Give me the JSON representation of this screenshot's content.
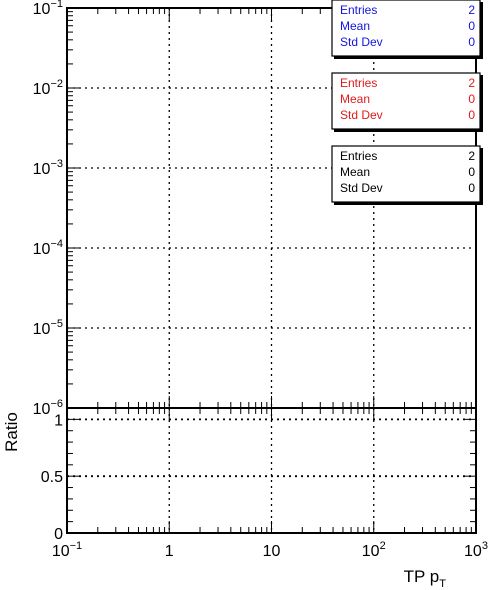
{
  "chart_data": [
    {
      "type": "line",
      "panel": "main",
      "x_scale": "log",
      "y_scale": "log",
      "xlim": [
        0.1,
        1000
      ],
      "ylim": [
        1e-06,
        0.1
      ],
      "grid": true,
      "y_ticks": [
        {
          "value": 0.1,
          "base": "10",
          "exp": "−1"
        },
        {
          "value": 0.01,
          "base": "10",
          "exp": "−2"
        },
        {
          "value": 0.001,
          "base": "10",
          "exp": "−3"
        },
        {
          "value": 0.0001,
          "base": "10",
          "exp": "−4"
        },
        {
          "value": 1e-05,
          "base": "10",
          "exp": "−5"
        },
        {
          "value": 1e-06,
          "base": "10",
          "exp": "−6"
        }
      ],
      "series": [],
      "stat_boxes": [
        {
          "color": "#1414dc",
          "rows": [
            {
              "label": "Entries",
              "value": "2"
            },
            {
              "label": "Mean",
              "value": "0"
            },
            {
              "label": "Std Dev",
              "value": "0"
            }
          ]
        },
        {
          "color": "#e01a1a",
          "rows": [
            {
              "label": "Entries",
              "value": "2"
            },
            {
              "label": "Mean",
              "value": "0"
            },
            {
              "label": "Std Dev",
              "value": "0"
            }
          ]
        },
        {
          "color": "#000000",
          "rows": [
            {
              "label": "Entries",
              "value": "2"
            },
            {
              "label": "Mean",
              "value": "0"
            },
            {
              "label": "Std Dev",
              "value": "0"
            }
          ]
        }
      ]
    },
    {
      "type": "line",
      "panel": "ratio",
      "x_scale": "log",
      "xlim": [
        0.1,
        1000
      ],
      "ylim": [
        0,
        1.1
      ],
      "grid": true,
      "ylabel": "Ratio",
      "y_ticks": [
        {
          "value": 0,
          "label": "0"
        },
        {
          "value": 0.5,
          "label": "0.5"
        },
        {
          "value": 1,
          "label": "1"
        }
      ],
      "x_ticks": [
        {
          "value": 0.1,
          "base": "10",
          "exp": "−1"
        },
        {
          "value": 1,
          "base": "1",
          "exp": ""
        },
        {
          "value": 10,
          "base": "10",
          "exp": ""
        },
        {
          "value": 100,
          "base": "10",
          "exp": "2"
        },
        {
          "value": 1000,
          "base": "10",
          "exp": "3"
        }
      ],
      "xlabel": {
        "main": "TP p",
        "sub": "T"
      },
      "series": []
    }
  ]
}
